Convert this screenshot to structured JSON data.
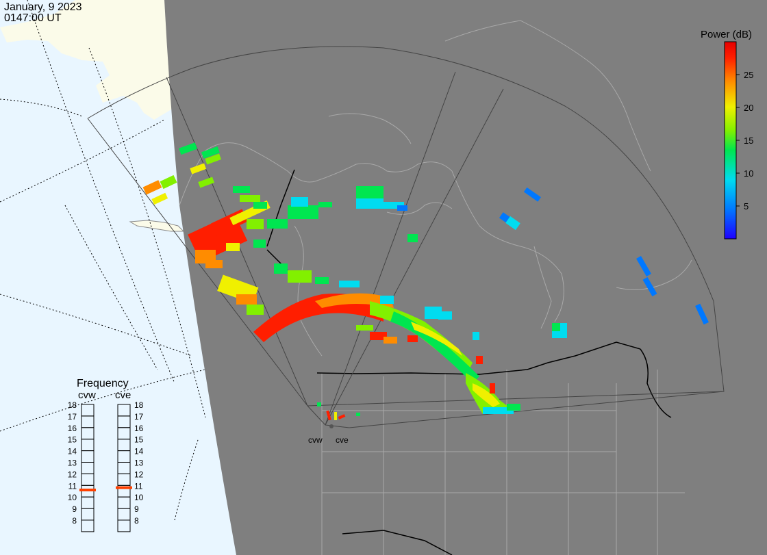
{
  "header": {
    "date": "January, 9 2023",
    "time": "0147:00 UT"
  },
  "colorbar": {
    "title": "Power (dB)",
    "ticks": [
      "25",
      "20",
      "15",
      "10",
      "5"
    ],
    "tick_values": [
      25,
      20,
      15,
      10,
      5
    ],
    "range": [
      0,
      30
    ],
    "colors": [
      "#1e00ff",
      "#0078ff",
      "#00dcf0",
      "#00e650",
      "#82f000",
      "#f0f000",
      "#ff8c00",
      "#ff1e00",
      "#e60000"
    ]
  },
  "frequency_panel": {
    "title": "Frequency",
    "scales": [
      {
        "name": "cvw",
        "selected_mhz": 10.6
      },
      {
        "name": "cve",
        "selected_mhz": 10.8
      }
    ],
    "ticks": [
      "18",
      "17",
      "16",
      "15",
      "14",
      "13",
      "12",
      "11",
      "10",
      "9",
      "8"
    ],
    "indicator_color": "#ff4000"
  },
  "radars": [
    {
      "name": "cvw"
    },
    {
      "name": "cve"
    }
  ],
  "map_colors": {
    "night": "#7f7f7f",
    "day_ocean": "#e9f6ff",
    "day_land": "#fbfbe9",
    "border": "#000000",
    "coast": "#a9a9a9"
  }
}
